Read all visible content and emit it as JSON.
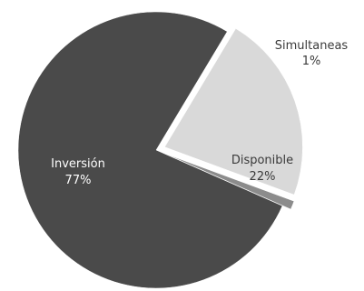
{
  "chart_data": {
    "type": "pie",
    "categories": [
      "Inversión",
      "Simultaneas",
      "Disponible"
    ],
    "values": [
      77,
      1,
      22
    ],
    "percent_labels": [
      "77%",
      "1%",
      "22%"
    ],
    "colors": [
      "#4a4a4a",
      "#8c8c8c",
      "#d9d9d9"
    ],
    "label_colors": [
      "#ffffff",
      "#3a3a3a",
      "#3a3a3a"
    ],
    "exploded": [
      false,
      true,
      true
    ],
    "legend": "none"
  }
}
